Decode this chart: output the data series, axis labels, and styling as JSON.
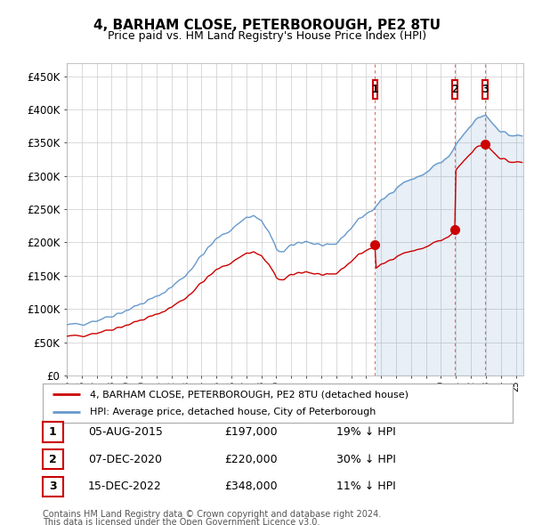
{
  "title1": "4, BARHAM CLOSE, PETERBOROUGH, PE2 8TU",
  "title2": "Price paid vs. HM Land Registry's House Price Index (HPI)",
  "ylabel_ticks": [
    "£0",
    "£50K",
    "£100K",
    "£150K",
    "£200K",
    "£250K",
    "£300K",
    "£350K",
    "£400K",
    "£450K"
  ],
  "ytick_values": [
    0,
    50000,
    100000,
    150000,
    200000,
    250000,
    300000,
    350000,
    400000,
    450000
  ],
  "ylim": [
    0,
    470000
  ],
  "xlim_start": 1995.0,
  "xlim_end": 2025.5,
  "sale_dates": [
    2015.6,
    2020.92,
    2022.96
  ],
  "sale_prices": [
    197000,
    220000,
    348000
  ],
  "sale_labels": [
    "1",
    "2",
    "3"
  ],
  "legend_line1": "4, BARHAM CLOSE, PETERBOROUGH, PE2 8TU (detached house)",
  "legend_line2": "HPI: Average price, detached house, City of Peterborough",
  "table_rows": [
    [
      "1",
      "05-AUG-2015",
      "£197,000",
      "19% ↓ HPI"
    ],
    [
      "2",
      "07-DEC-2020",
      "£220,000",
      "30% ↓ HPI"
    ],
    [
      "3",
      "15-DEC-2022",
      "£348,000",
      "11% ↓ HPI"
    ]
  ],
  "footnote1": "Contains HM Land Registry data © Crown copyright and database right 2024.",
  "footnote2": "This data is licensed under the Open Government Licence v3.0.",
  "red_line_color": "#cc0000",
  "blue_line_color": "#6699cc",
  "blue_fill_color": "#ddeeff",
  "dashed_line_color": "#dd4444",
  "grid_color": "#cccccc",
  "background_color": "#ffffff",
  "box_color": "#cc0000"
}
